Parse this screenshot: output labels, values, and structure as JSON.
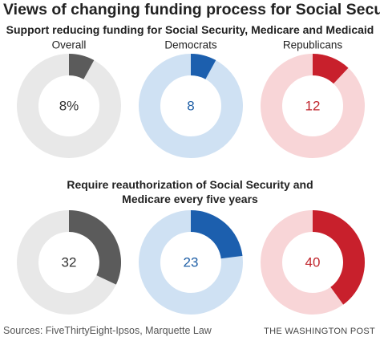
{
  "title": "Views of changing funding process for Social Security",
  "chart_data": [
    {
      "type": "donut",
      "title": "Support reducing funding for Social Security, Medicare and Medicaid",
      "categories": [
        "Overall",
        "Democrats",
        "Republicans"
      ],
      "values": [
        8,
        8,
        12
      ],
      "value_labels": [
        "8%",
        "8",
        "12"
      ],
      "colors": [
        "#5b5b5b",
        "#1c5fae",
        "#c8202c"
      ],
      "track_colors": [
        "#e8e8e8",
        "#cfe1f3",
        "#f8d5d7"
      ],
      "label_colors": [
        "#333333",
        "#1f5fa6",
        "#c0262d"
      ]
    },
    {
      "type": "donut",
      "title": "Require reauthorization of Social Security and Medicare every five years",
      "values": [
        32,
        23,
        40
      ],
      "colors": [
        "#5b5b5b",
        "#1c5fae",
        "#c8202c"
      ],
      "track_colors": [
        "#e8e8e8",
        "#cfe1f3",
        "#f8d5d7"
      ],
      "label_colors": [
        "#333333",
        "#1f5fa6",
        "#c0262d"
      ]
    }
  ],
  "source": "Sources: FiveThirtyEight-Ipsos, Marquette Law",
  "credit": "THE WASHINGTON POST"
}
